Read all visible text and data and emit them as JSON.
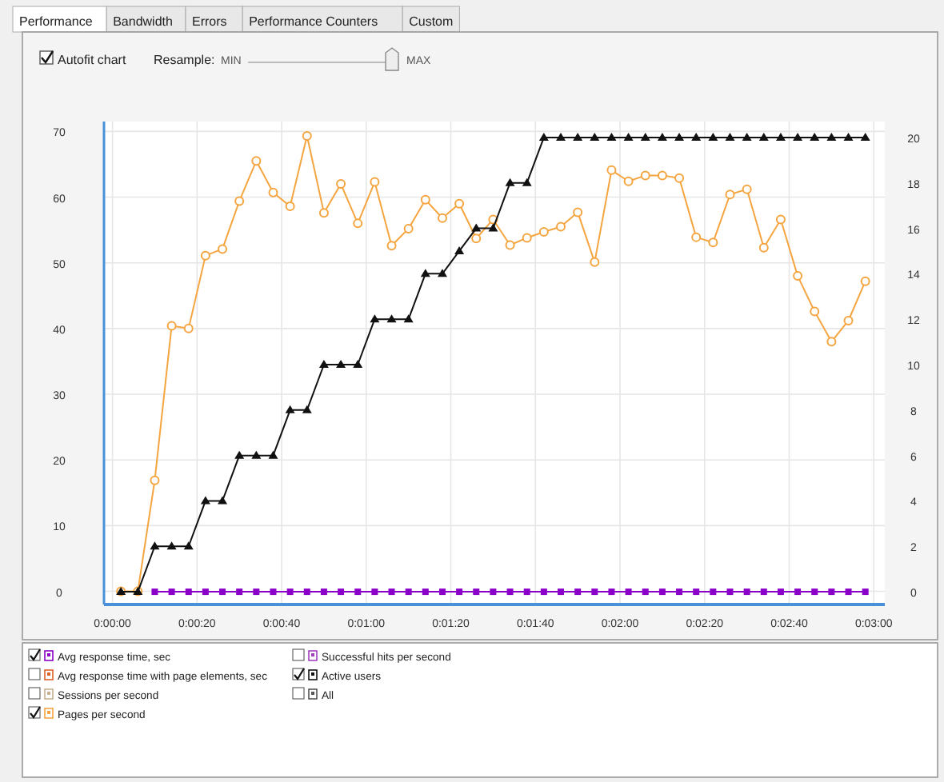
{
  "chart_data": {
    "type": "line",
    "x": [
      2,
      6,
      10,
      14,
      18,
      22,
      26,
      30,
      34,
      38,
      42,
      46,
      50,
      54,
      58,
      62,
      66,
      70,
      74,
      78,
      82,
      86,
      90,
      94,
      98,
      102,
      106,
      110,
      114,
      118,
      122,
      126,
      130,
      134,
      138,
      142,
      146,
      150,
      154,
      158,
      162,
      166,
      170,
      174,
      178
    ],
    "xlim": [
      -2,
      182.6
    ],
    "xticks": [
      {
        "value": 0,
        "label": "0:00:00"
      },
      {
        "value": 20,
        "label": "0:00:20"
      },
      {
        "value": 40,
        "label": "0:00:40"
      },
      {
        "value": 60,
        "label": "0:01:00"
      },
      {
        "value": 80,
        "label": "0:01:20"
      },
      {
        "value": 100,
        "label": "0:01:40"
      },
      {
        "value": 120,
        "label": "0:02:00"
      },
      {
        "value": 140,
        "label": "0:02:20"
      },
      {
        "value": 160,
        "label": "0:02:40"
      },
      {
        "value": 180,
        "label": "0:03:00"
      }
    ],
    "ylim": [
      -2,
      71.5
    ],
    "yticks": [
      0,
      10,
      20,
      30,
      40,
      50,
      60,
      70
    ],
    "y2lim": [
      -0.56,
      20.7
    ],
    "y2ticks": [
      0,
      2,
      4,
      6,
      8,
      10,
      12,
      14,
      16,
      18,
      20
    ],
    "grid": true,
    "legend": "bottom",
    "line_style": "solid",
    "series": [
      {
        "name": "Avg response time, sec",
        "color": "#8a00c8",
        "axis": "y2",
        "marker": "square",
        "values": [
          null,
          null,
          0,
          0,
          0,
          0,
          0,
          0,
          0,
          0,
          0,
          0,
          0,
          0,
          0,
          0,
          0,
          0,
          0,
          0,
          0,
          0,
          0,
          0,
          0,
          0,
          0,
          0,
          0,
          0,
          0,
          0,
          0,
          0,
          0,
          0,
          0,
          0,
          0,
          0,
          0,
          0,
          0,
          0,
          0
        ]
      },
      {
        "name": "Pages per second",
        "color": "#f5a540",
        "marker": "circle",
        "values": [
          0,
          0,
          16.9,
          40.4,
          40.0,
          51.1,
          52.1,
          59.4,
          65.5,
          60.7,
          58.6,
          69.3,
          57.6,
          62.0,
          56.0,
          62.3,
          52.6,
          55.2,
          59.6,
          56.8,
          59.0,
          53.7,
          56.6,
          52.7,
          53.8,
          54.7,
          55.5,
          57.7,
          50.1,
          64.1,
          62.4,
          63.3,
          63.3,
          62.9,
          53.9,
          53.1,
          60.4,
          61.2,
          52.3,
          56.6,
          48.0,
          42.6,
          38.0,
          41.2,
          47.2
        ]
      },
      {
        "name": "Active users",
        "color": "#111111",
        "axis": "y2",
        "marker": "triangle",
        "values": [
          0,
          0,
          2,
          2,
          2,
          4,
          4,
          6,
          6,
          6,
          8,
          8,
          10,
          10,
          10,
          12,
          12,
          12,
          14,
          14,
          15,
          16,
          16,
          18,
          18,
          20,
          20,
          20,
          20,
          20,
          20,
          20,
          20,
          20,
          20,
          20,
          20,
          20,
          20,
          20,
          20,
          20,
          20,
          20,
          20
        ]
      }
    ],
    "annotations": [
      "Performance",
      "Bandwidth",
      "Errors",
      "Performance Counters",
      "Custom",
      "Autofit chart",
      "Resample:",
      "MIN",
      "MAX",
      "Avg response time with page elements, sec",
      "Sessions per second",
      "Successful hits per second",
      "All"
    ]
  }
}
